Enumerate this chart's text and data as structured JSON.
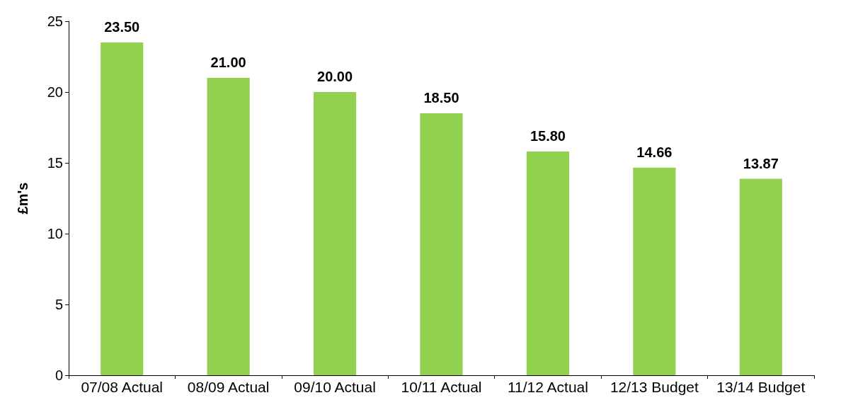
{
  "chart_data": {
    "type": "bar",
    "ylabel": "£m's",
    "categories": [
      "07/08 Actual",
      "08/09 Actual",
      "09/10 Actual",
      "10/11 Actual",
      "11/12 Actual",
      "12/13 Budget",
      "13/14 Budget"
    ],
    "values": [
      23.5,
      21.0,
      20.0,
      18.5,
      15.8,
      14.66,
      13.87
    ],
    "value_labels": [
      "23.50",
      "21.00",
      "20.00",
      "18.50",
      "15.80",
      "14.66",
      "13.87"
    ],
    "color": "#92d050",
    "ylim": [
      0,
      25
    ],
    "yticks": [
      0,
      5,
      10,
      15,
      20,
      25
    ],
    "grid": false
  }
}
